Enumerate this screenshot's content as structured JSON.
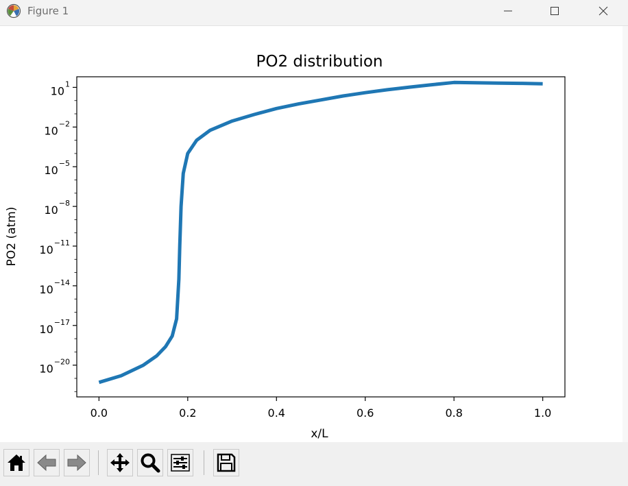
{
  "window": {
    "title": "Figure 1",
    "controls": [
      "minimize",
      "maximize",
      "close"
    ]
  },
  "chart_data": {
    "type": "line",
    "title": "PO2 distribution",
    "xlabel": "x/L",
    "ylabel": "PO2 (atm)",
    "xlim": [
      -0.05,
      1.05
    ],
    "ylim": [
      -22.4,
      1.8
    ],
    "y_scale": "log",
    "grid": false,
    "legend": "none",
    "x_ticks": [
      0.0,
      0.2,
      0.4,
      0.6,
      0.8,
      1.0
    ],
    "x_tick_labels": [
      "0.0",
      "0.2",
      "0.4",
      "0.6",
      "0.8",
      "1.0"
    ],
    "y_tick_exponents": [
      1,
      -2,
      -5,
      -8,
      -11,
      -14,
      -17,
      -20
    ],
    "y_tick_labels": [
      "10",
      "10",
      "10",
      "10",
      "10",
      "10",
      "10",
      "10"
    ],
    "y_tick_superscripts": [
      "1",
      "−2",
      "−5",
      "−8",
      "−11",
      "−14",
      "−17",
      "−20"
    ],
    "series": [
      {
        "color": "#1f77b4",
        "x": [
          0.0,
          0.05,
          0.1,
          0.13,
          0.15,
          0.165,
          0.175,
          0.18,
          0.182,
          0.185,
          0.19,
          0.2,
          0.22,
          0.25,
          0.3,
          0.35,
          0.4,
          0.45,
          0.5,
          0.55,
          0.6,
          0.65,
          0.7,
          0.75,
          0.8,
          0.85,
          0.9,
          0.95,
          1.0
        ],
        "log10_y": [
          -21.3,
          -20.8,
          -20.0,
          -19.3,
          -18.6,
          -17.8,
          -16.5,
          -13.5,
          -11.0,
          -8.0,
          -5.5,
          -4.0,
          -3.0,
          -2.25,
          -1.55,
          -1.05,
          -0.6,
          -0.25,
          0.05,
          0.35,
          0.6,
          0.82,
          1.02,
          1.2,
          1.37,
          1.35,
          1.32,
          1.3,
          1.27
        ]
      }
    ]
  },
  "toolbar": {
    "buttons": [
      {
        "name": "home",
        "icon": "home-icon"
      },
      {
        "name": "back",
        "icon": "back-arrow-icon"
      },
      {
        "name": "forward",
        "icon": "forward-arrow-icon"
      },
      {
        "name": "pan",
        "icon": "move-icon"
      },
      {
        "name": "zoom",
        "icon": "magnifier-icon"
      },
      {
        "name": "configure",
        "icon": "sliders-icon"
      },
      {
        "name": "save",
        "icon": "floppy-disk-icon"
      }
    ]
  }
}
